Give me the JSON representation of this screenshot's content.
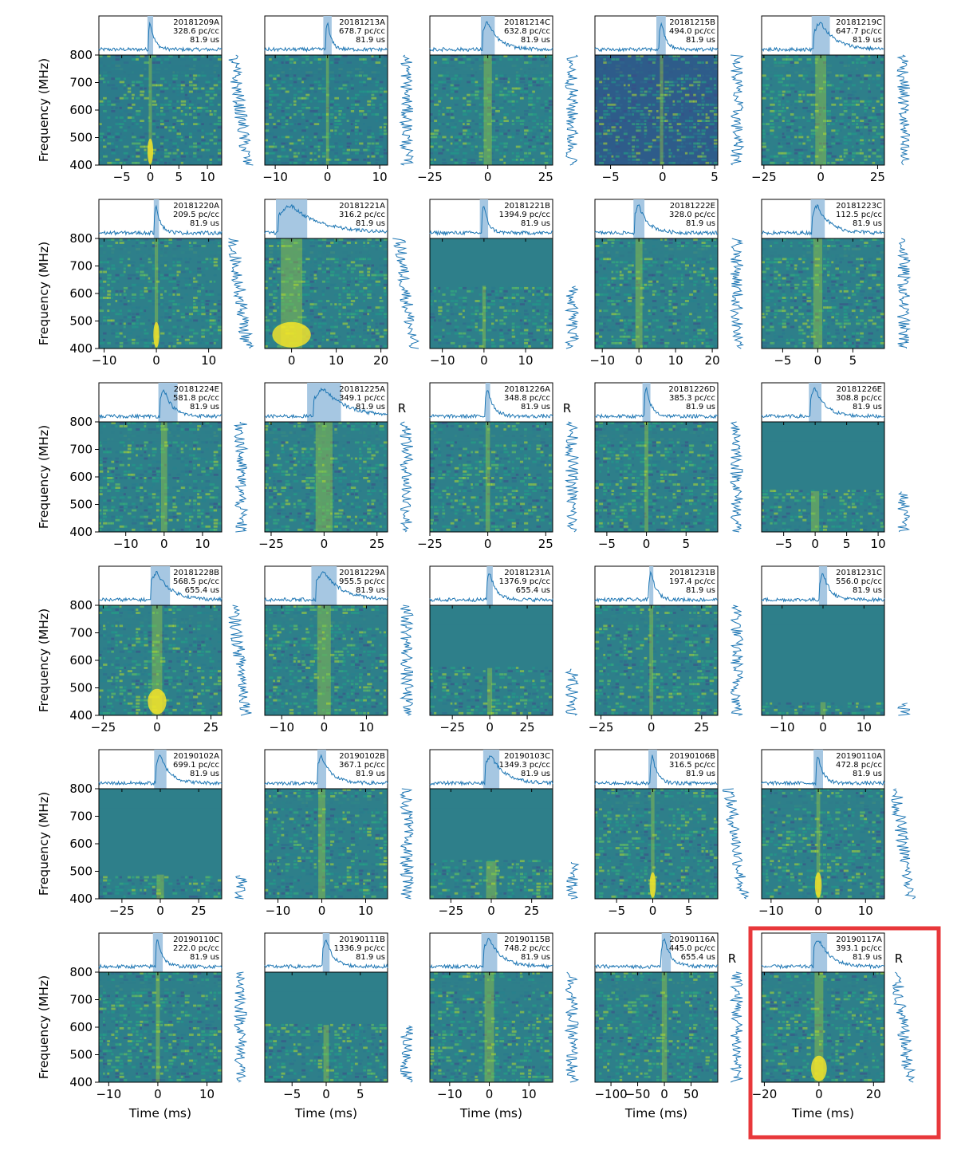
{
  "figure": {
    "xlabel": "Time (ms)",
    "ylabel": "Frequency (MHz)",
    "highlight_color": "#e8383b",
    "highlight_panel": "20190117A",
    "profile_color": "#1f77b4",
    "window_color": "#a6c7e2"
  },
  "chart_data": {
    "type": "heatmap",
    "description_free": true,
    "freq_ticks": [
      400,
      500,
      600,
      700,
      800
    ],
    "ylim": [
      400,
      800
    ],
    "panels": [
      {
        "name": "20181209A",
        "dm": "328.6 pc/cc",
        "tres": "81.9 us",
        "repeater": false,
        "xlim": [
          -9,
          12.5
        ],
        "xticks": [
          -5,
          0,
          5,
          10
        ],
        "window": [
          -0.5,
          0.5
        ],
        "peak_t": 0,
        "width": 0.35,
        "masked_top": 0,
        "bright_low": true,
        "noise_bg": "#2c7b8a"
      },
      {
        "name": "20181213A",
        "dm": "678.7 pc/cc",
        "tres": "81.9 us",
        "repeater": false,
        "xlim": [
          -12,
          11.5
        ],
        "xticks": [
          -10,
          0,
          10
        ],
        "window": [
          -0.8,
          0.8
        ],
        "peak_t": 0,
        "width": 0.35,
        "masked_top": 0,
        "bright_low": false,
        "noise_bg": "#2c7b8a"
      },
      {
        "name": "20181214C",
        "dm": "632.8 pc/cc",
        "tres": "81.9 us",
        "repeater": false,
        "xlim": [
          -25,
          28
        ],
        "xticks": [
          -25,
          0,
          25
        ],
        "window": [
          -3,
          3
        ],
        "peak_t": 0,
        "width": 2.2,
        "masked_top": 0,
        "bright_low": false,
        "noise_bg": "#2e7f8a"
      },
      {
        "name": "20181215B",
        "dm": "494.0 pc/cc",
        "tres": "81.9 us",
        "repeater": false,
        "xlim": [
          -6.5,
          5.3
        ],
        "xticks": [
          -5,
          0,
          5
        ],
        "window": [
          -0.6,
          0.3
        ],
        "peak_t": -0.1,
        "width": 0.2,
        "masked_top": 0,
        "bright_low": false,
        "noise_bg": "#2e5c8a"
      },
      {
        "name": "20181219C",
        "dm": "647.7 pc/cc",
        "tres": "81.9 us",
        "repeater": false,
        "xlim": [
          -26,
          28
        ],
        "xticks": [
          -25,
          0,
          25
        ],
        "window": [
          -4,
          4
        ],
        "peak_t": 0,
        "width": 3.0,
        "masked_top": 0,
        "bright_low": false,
        "noise_bg": "#2e7f8a"
      },
      {
        "name": "20181220A",
        "dm": "209.5 pc/cc",
        "tres": "81.9 us",
        "repeater": false,
        "xlim": [
          -11,
          12.5
        ],
        "xticks": [
          -10,
          0,
          10
        ],
        "window": [
          -0.5,
          0.5
        ],
        "peak_t": 0,
        "width": 0.4,
        "masked_top": 0,
        "bright_low": true,
        "noise_bg": "#2e7f8a"
      },
      {
        "name": "20181221A",
        "dm": "316.2 pc/cc",
        "tres": "81.9 us",
        "repeater": false,
        "xlim": [
          -6,
          21.5
        ],
        "xticks": [
          0,
          10,
          20
        ],
        "window": [
          -3.5,
          3.5
        ],
        "peak_t": 0,
        "width": 3.0,
        "masked_top": 0,
        "bright_low": true,
        "noise_bg": "#2e7f8a"
      },
      {
        "name": "20181221B",
        "dm": "1394.9 pc/cc",
        "tres": "81.9 us",
        "repeater": false,
        "xlim": [
          -13,
          16.5
        ],
        "xticks": [
          -10,
          0,
          10
        ],
        "window": [
          -1,
          1
        ],
        "peak_t": 0,
        "width": 0.5,
        "masked_top": 0.43,
        "bright_low": false,
        "noise_bg": "#2e7f8a"
      },
      {
        "name": "20181222E",
        "dm": "328.0 pc/cc",
        "tres": "81.9 us",
        "repeater": false,
        "xlim": [
          -12,
          21.5
        ],
        "xticks": [
          -10,
          0,
          10,
          20
        ],
        "window": [
          -1.5,
          1.5
        ],
        "peak_t": 0,
        "width": 1.2,
        "masked_top": 0,
        "bright_low": false,
        "noise_bg": "#2e7f8a"
      },
      {
        "name": "20181223C",
        "dm": "112.5 pc/cc",
        "tres": "81.9 us",
        "repeater": false,
        "xlim": [
          -8,
          9.5
        ],
        "xticks": [
          -5,
          0,
          5
        ],
        "window": [
          -1,
          1
        ],
        "peak_t": 0,
        "width": 0.8,
        "masked_top": 0,
        "bright_low": false,
        "noise_bg": "#2e7f8a"
      },
      {
        "name": "20181224E",
        "dm": "581.8 pc/cc",
        "tres": "81.9 us",
        "repeater": false,
        "xlim": [
          -17,
          15
        ],
        "xticks": [
          -10,
          0,
          10
        ],
        "window": [
          -1.5,
          3.5
        ],
        "peak_t": 0,
        "width": 1.0,
        "masked_top": 0,
        "bright_low": false,
        "noise_bg": "#2e7f8a"
      },
      {
        "name": "20181225A",
        "dm": "349.1 pc/cc",
        "tres": "81.9 us",
        "repeater": true,
        "xlim": [
          -28,
          30
        ],
        "xticks": [
          -25,
          0,
          25
        ],
        "window": [
          -8,
          8
        ],
        "peak_t": 0,
        "width": 5,
        "masked_top": 0,
        "bright_low": false,
        "noise_bg": "#2e7f8a"
      },
      {
        "name": "20181226A",
        "dm": "348.8 pc/cc",
        "tres": "81.9 us",
        "repeater": true,
        "xlim": [
          -25,
          28
        ],
        "xticks": [
          -25,
          0,
          25
        ],
        "window": [
          -1,
          1
        ],
        "peak_t": 0,
        "width": 1.2,
        "masked_top": 0,
        "bright_low": false,
        "noise_bg": "#2e7f8a"
      },
      {
        "name": "20181226D",
        "dm": "385.3 pc/cc",
        "tres": "81.9 us",
        "repeater": false,
        "xlim": [
          -6.5,
          9
        ],
        "xticks": [
          -5,
          0,
          5
        ],
        "window": [
          -0.5,
          0.5
        ],
        "peak_t": 0,
        "width": 0.3,
        "masked_top": 0,
        "bright_low": false,
        "noise_bg": "#2e7f8a"
      },
      {
        "name": "20181226E",
        "dm": "308.8 pc/cc",
        "tres": "81.9 us",
        "repeater": false,
        "xlim": [
          -8.5,
          11
        ],
        "xticks": [
          -5,
          0,
          5,
          10
        ],
        "window": [
          -1,
          1
        ],
        "peak_t": 0,
        "width": 0.8,
        "masked_top": 0.63,
        "bright_low": false,
        "noise_bg": "#2e7f8a"
      },
      {
        "name": "20181228B",
        "dm": "568.5 pc/cc",
        "tres": "655.4 us",
        "repeater": false,
        "xlim": [
          -27,
          30
        ],
        "xticks": [
          -25,
          0,
          25
        ],
        "window": [
          -3,
          6
        ],
        "peak_t": 0,
        "width": 3,
        "masked_top": 0,
        "bright_low": true,
        "noise_bg": "#2e7f8a"
      },
      {
        "name": "20181229A",
        "dm": "955.5 pc/cc",
        "tres": "81.9 us",
        "repeater": false,
        "xlim": [
          -14,
          15
        ],
        "xticks": [
          -10,
          0,
          10
        ],
        "window": [
          -3,
          3
        ],
        "peak_t": 0,
        "width": 2,
        "masked_top": 0,
        "bright_low": false,
        "noise_bg": "#2e7f8a"
      },
      {
        "name": "20181231A",
        "dm": "1376.9 pc/cc",
        "tres": "655.4 us",
        "repeater": false,
        "xlim": [
          -40,
          42
        ],
        "xticks": [
          -25,
          0,
          25
        ],
        "window": [
          -2,
          2
        ],
        "peak_t": 0,
        "width": 2,
        "masked_top": 0.57,
        "bright_low": false,
        "noise_bg": "#2e7f8a"
      },
      {
        "name": "20181231B",
        "dm": "197.4 pc/cc",
        "tres": "81.9 us",
        "repeater": false,
        "xlim": [
          -28,
          33
        ],
        "xticks": [
          -25,
          0,
          25
        ],
        "window": [
          -1,
          1
        ],
        "peak_t": 0,
        "width": 1.2,
        "masked_top": 0,
        "bright_low": false,
        "noise_bg": "#2e7f8a"
      },
      {
        "name": "20181231C",
        "dm": "556.0 pc/cc",
        "tres": "81.9 us",
        "repeater": false,
        "xlim": [
          -15,
          15
        ],
        "xticks": [
          -10,
          0,
          10
        ],
        "window": [
          -1,
          1
        ],
        "peak_t": 0,
        "width": 0.8,
        "masked_top": 0.88,
        "bright_low": false,
        "noise_bg": "#2e7f8a"
      },
      {
        "name": "20190102A",
        "dm": "699.1 pc/cc",
        "tres": "81.9 us",
        "repeater": false,
        "xlim": [
          -40,
          40
        ],
        "xticks": [
          -25,
          0,
          25
        ],
        "window": [
          -4,
          4
        ],
        "peak_t": 0,
        "width": 3,
        "masked_top": 0.78,
        "bright_low": false,
        "noise_bg": "#2e7f8a"
      },
      {
        "name": "20190102B",
        "dm": "367.1 pc/cc",
        "tres": "81.9 us",
        "repeater": false,
        "xlim": [
          -13,
          15
        ],
        "xticks": [
          -10,
          0,
          10
        ],
        "window": [
          -1,
          1
        ],
        "peak_t": 0,
        "width": 1,
        "masked_top": 0,
        "bright_low": false,
        "noise_bg": "#2e7f8a"
      },
      {
        "name": "20190103C",
        "dm": "1349.3 pc/cc",
        "tres": "81.9 us",
        "repeater": false,
        "xlim": [
          -38,
          38
        ],
        "xticks": [
          -25,
          0,
          25
        ],
        "window": [
          -5,
          5
        ],
        "peak_t": 0,
        "width": 4,
        "masked_top": 0.66,
        "bright_low": false,
        "noise_bg": "#2e7f8a"
      },
      {
        "name": "20190106B",
        "dm": "316.5 pc/cc",
        "tres": "81.9 us",
        "repeater": false,
        "xlim": [
          -8,
          9
        ],
        "xticks": [
          -5,
          0,
          5
        ],
        "window": [
          -0.6,
          0.6
        ],
        "peak_t": 0,
        "width": 0.3,
        "masked_top": 0,
        "bright_low": true,
        "noise_bg": "#2e7f8a"
      },
      {
        "name": "20190110A",
        "dm": "472.8 pc/cc",
        "tres": "81.9 us",
        "repeater": false,
        "xlim": [
          -12,
          14
        ],
        "xticks": [
          -10,
          0,
          10
        ],
        "window": [
          -1,
          1
        ],
        "peak_t": 0,
        "width": 0.5,
        "masked_top": 0,
        "bright_low": true,
        "noise_bg": "#2e7f8a"
      },
      {
        "name": "20190110C",
        "dm": "222.0 pc/cc",
        "tres": "81.9 us",
        "repeater": false,
        "xlim": [
          -12,
          13
        ],
        "xticks": [
          -10,
          0,
          10
        ],
        "window": [
          -1,
          1
        ],
        "peak_t": 0,
        "width": 0.5,
        "masked_top": 0,
        "bright_low": false,
        "noise_bg": "#2e7f8a"
      },
      {
        "name": "20190111B",
        "dm": "1336.9 pc/cc",
        "tres": "81.9 us",
        "repeater": false,
        "xlim": [
          -9,
          9
        ],
        "xticks": [
          -5,
          0,
          5
        ],
        "window": [
          -0.5,
          0.5
        ],
        "peak_t": 0,
        "width": 0.5,
        "masked_top": 0.48,
        "bright_low": false,
        "noise_bg": "#2e7f8a"
      },
      {
        "name": "20190115B",
        "dm": "748.2 pc/cc",
        "tres": "81.9 us",
        "repeater": false,
        "xlim": [
          -15,
          16
        ],
        "xticks": [
          -10,
          0,
          10
        ],
        "window": [
          -2,
          2
        ],
        "peak_t": 0,
        "width": 1.5,
        "masked_top": 0,
        "bright_low": false,
        "noise_bg": "#2e7f8a"
      },
      {
        "name": "20190116A",
        "dm": "445.0 pc/cc",
        "tres": "655.4 us",
        "repeater": true,
        "xlim": [
          -130,
          100
        ],
        "xticks": [
          -100,
          -50,
          0,
          50
        ],
        "window": [
          -5,
          12
        ],
        "peak_t": 0,
        "width": 6,
        "masked_top": 0,
        "bright_low": false,
        "noise_bg": "#2e7f8a"
      },
      {
        "name": "20190117A",
        "dm": "393.1 pc/cc",
        "tres": "81.9 us",
        "repeater": true,
        "xlim": [
          -21,
          24
        ],
        "xticks": [
          -20,
          0,
          20
        ],
        "window": [
          -3,
          3
        ],
        "peak_t": 0,
        "width": 2,
        "masked_top": 0,
        "bright_low": true,
        "noise_bg": "#2e7f8a"
      }
    ]
  }
}
